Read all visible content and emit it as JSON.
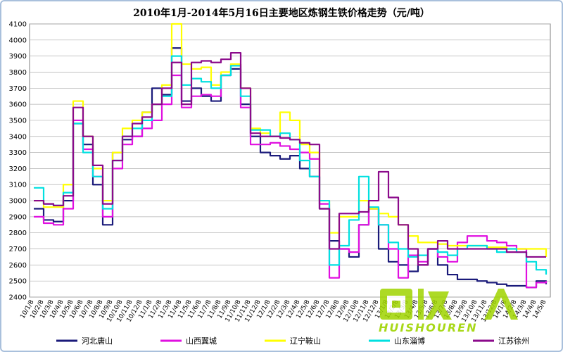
{
  "chart_data": {
    "type": "line",
    "title": "2010年1月-2014年5月16日主要地区炼钢生铁价格走势（元/吨）",
    "ylim": [
      2400,
      4100
    ],
    "yticks": [
      2400,
      2500,
      2600,
      2700,
      2800,
      2900,
      3000,
      3100,
      3200,
      3300,
      3400,
      3500,
      3600,
      3700,
      3800,
      3900,
      4000,
      4100
    ],
    "grid": true,
    "legend_position": "bottom",
    "x": [
      "10/1/8",
      "10/2/8",
      "10/3/8",
      "10/4/8",
      "10/5/8",
      "10/6/8",
      "10/7/8",
      "10/8/8",
      "10/9/8",
      "10/10/8",
      "10/11/8",
      "10/12/8",
      "11/1/8",
      "11/2/8",
      "11/3/8",
      "11/4/8",
      "11/5/8",
      "11/6/8",
      "11/7/8",
      "11/8/8",
      "11/9/8",
      "11/10/8",
      "11/11/8",
      "11/12/8",
      "12/1/8",
      "12/2/8",
      "12/3/8",
      "12/4/8",
      "12/5/8",
      "12/6/8",
      "12/7/8",
      "12/8/8",
      "12/9/8",
      "12/10/8",
      "12/11/8",
      "12/12/8",
      "13/1/8",
      "13/2/8",
      "13/3/8",
      "13/4/8",
      "13/5/8",
      "13/6/8",
      "13/7/8",
      "13/8/8",
      "13/9/8",
      "13/10/8",
      "13/11/8",
      "13/12/8",
      "14/1/8",
      "14/2/8",
      "14/3/8",
      "14/4/8",
      "14/5/8"
    ],
    "series": [
      {
        "name": "河北唐山",
        "color": "#1a1a7a",
        "values": [
          2950,
          2880,
          2870,
          3000,
          3480,
          3350,
          3100,
          2850,
          3300,
          3380,
          3400,
          3550,
          3700,
          3660,
          3950,
          3620,
          3700,
          3650,
          3620,
          3780,
          3820,
          3600,
          3400,
          3300,
          3280,
          3260,
          3280,
          3200,
          3150,
          2950,
          2750,
          2700,
          2650,
          2850,
          2950,
          2700,
          2620,
          2600,
          2560,
          2600,
          2700,
          2600,
          2540,
          2510,
          2510,
          2500,
          2490,
          2480,
          2470,
          2470,
          2460,
          2500,
          2480
        ]
      },
      {
        "name": "山西翼城",
        "color": "#e010e0",
        "values": [
          2900,
          2860,
          2850,
          2950,
          3500,
          3320,
          3150,
          2900,
          3200,
          3350,
          3400,
          3450,
          3500,
          3600,
          3780,
          3580,
          3650,
          3660,
          3650,
          3780,
          3850,
          3580,
          3350,
          3350,
          3360,
          3340,
          3320,
          3300,
          3260,
          2980,
          2520,
          2700,
          2680,
          2850,
          2950,
          2850,
          2700,
          2520,
          2660,
          2620,
          2700,
          2650,
          2620,
          2740,
          2780,
          2780,
          2750,
          2740,
          2720,
          2700,
          2460,
          2490,
          2500
        ]
      },
      {
        "name": "辽宁鞍山",
        "color": "#ffff00",
        "values": [
          3000,
          2960,
          2960,
          3100,
          3620,
          3400,
          3200,
          3000,
          3300,
          3450,
          3500,
          3550,
          3600,
          3720,
          4100,
          3850,
          3820,
          3830,
          3720,
          3800,
          3850,
          3700,
          3450,
          3420,
          3400,
          3550,
          3500,
          3350,
          3300,
          3000,
          2800,
          2900,
          2900,
          3000,
          2950,
          2920,
          2900,
          2850,
          2780,
          2740,
          2740,
          2730,
          2720,
          2720,
          2720,
          2720,
          2710,
          2710,
          2700,
          2700,
          2700,
          2700,
          2650
        ]
      },
      {
        "name": "山东淄博",
        "color": "#00e0e0",
        "values": [
          3080,
          2980,
          2970,
          3050,
          3480,
          3300,
          3150,
          2950,
          3250,
          3400,
          3450,
          3500,
          3600,
          3650,
          3900,
          3720,
          3760,
          3740,
          3700,
          3780,
          3840,
          3650,
          3440,
          3440,
          3400,
          3420,
          3380,
          3250,
          3150,
          3000,
          2600,
          2720,
          2880,
          3150,
          2960,
          2850,
          2740,
          2700,
          2650,
          2660,
          2700,
          2680,
          2660,
          2700,
          2720,
          2720,
          2700,
          2680,
          2700,
          2680,
          2620,
          2570,
          2540
        ]
      },
      {
        "name": "江苏徐州",
        "color": "#8b0a8b",
        "values": [
          3000,
          2980,
          2970,
          3030,
          3580,
          3400,
          3220,
          2980,
          3250,
          3400,
          3480,
          3520,
          3600,
          3700,
          3860,
          3600,
          3860,
          3870,
          3860,
          3880,
          3920,
          3700,
          3420,
          3400,
          3400,
          3390,
          3380,
          3360,
          3350,
          2950,
          2700,
          2920,
          2920,
          2930,
          3000,
          3180,
          3020,
          2850,
          2700,
          2600,
          2700,
          2750,
          2700,
          2700,
          2700,
          2700,
          2700,
          2700,
          2680,
          2680,
          2650,
          2650,
          2650
        ]
      }
    ]
  },
  "watermark": {
    "text": "HUISHOUREN"
  }
}
